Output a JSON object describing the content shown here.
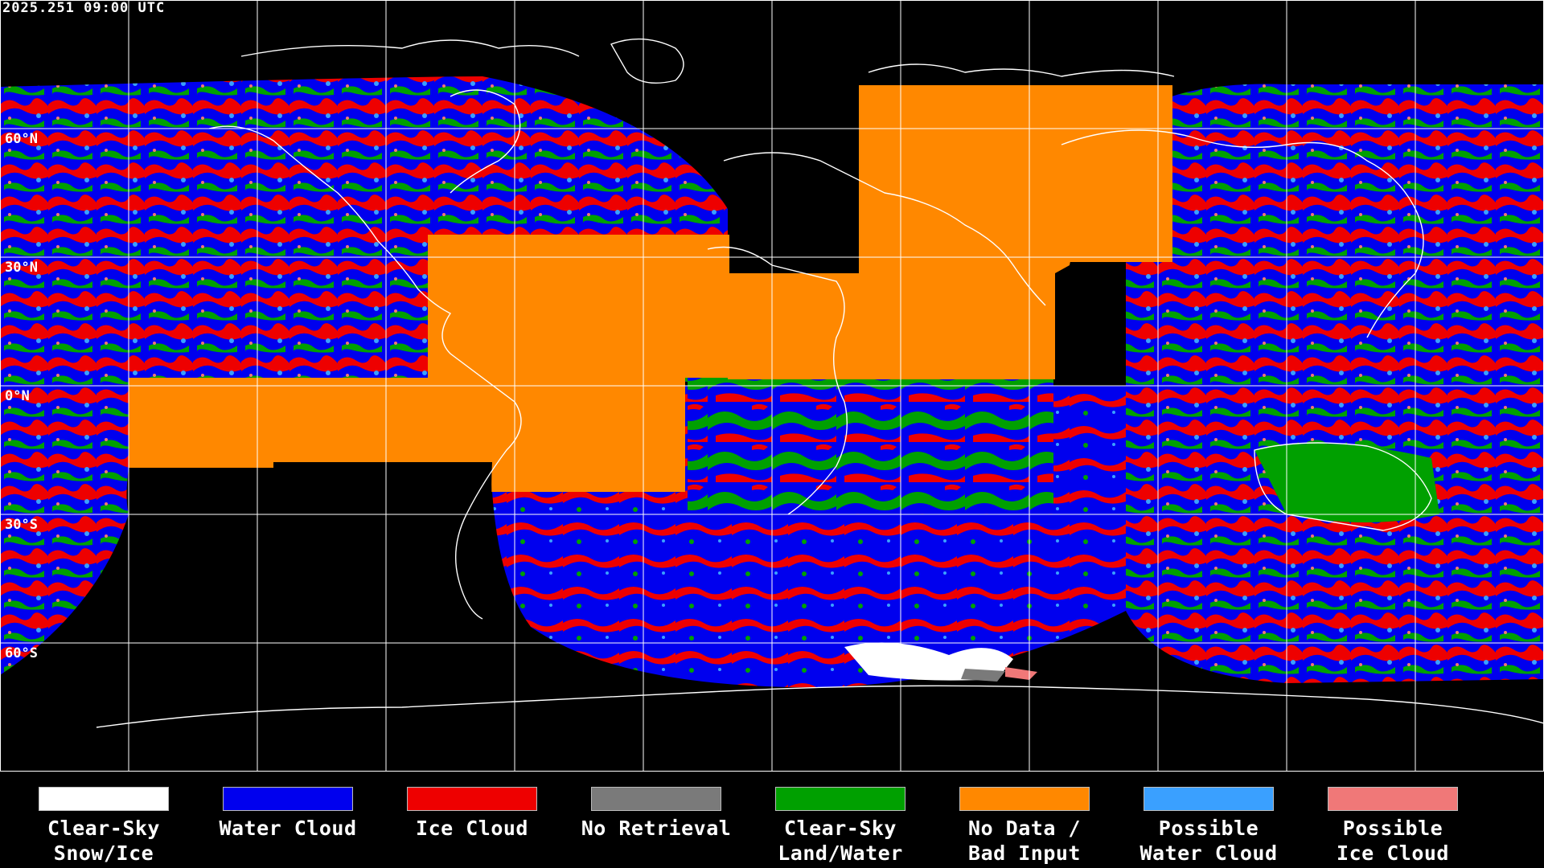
{
  "timestamp": "2025.251 09:00 UTC",
  "lat_labels": [
    "60°N",
    "30°N",
    "0°N",
    "30°S",
    "60°S"
  ],
  "legend": [
    {
      "label": "Clear-Sky\nSnow/Ice",
      "color": "#ffffff"
    },
    {
      "label": "Water Cloud",
      "color": "#0000ee"
    },
    {
      "label": "Ice Cloud",
      "color": "#ee0000"
    },
    {
      "label": "No Retrieval",
      "color": "#7a7a7a"
    },
    {
      "label": "Clear-Sky\nLand/Water",
      "color": "#00a000"
    },
    {
      "label": "No Data /\nBad Input",
      "color": "#ff8800"
    },
    {
      "label": "Possible\nWater Cloud",
      "color": "#3aa0ff"
    },
    {
      "label": "Possible\nIce Cloud",
      "color": "#f07878"
    }
  ]
}
